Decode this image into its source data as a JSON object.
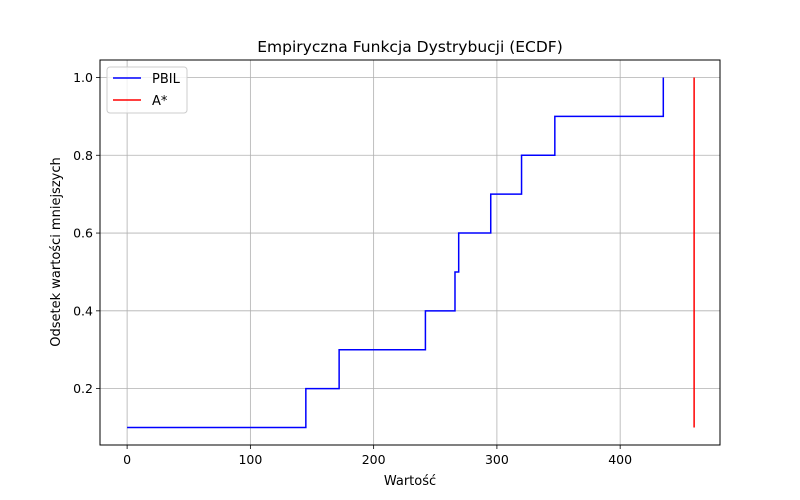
{
  "chart_data": {
    "type": "line",
    "title": "Empiryczna Funkcja Dystrybucji (ECDF)",
    "xlabel": "Wartość",
    "ylabel": "Odsetek wartości mniejszych",
    "xlim": [
      -22,
      481
    ],
    "ylim": [
      0.055,
      1.045
    ],
    "xticks": [
      0,
      100,
      200,
      300,
      400
    ],
    "yticks": [
      0.2,
      0.4,
      0.6,
      0.8,
      1.0
    ],
    "xtick_labels": [
      "0",
      "100",
      "200",
      "300",
      "400"
    ],
    "ytick_labels": [
      "0.2",
      "0.4",
      "0.6",
      "0.8",
      "1.0"
    ],
    "grid": true,
    "legend_position": "top-left",
    "series": [
      {
        "name": "PBIL",
        "color": "#0000ff",
        "step": "post",
        "x": [
          0,
          145,
          172,
          242,
          266,
          269,
          295,
          320,
          347,
          435,
          435
        ],
        "y": [
          0.1,
          0.2,
          0.3,
          0.4,
          0.5,
          0.6,
          0.7,
          0.8,
          0.9,
          0.9,
          1.0
        ]
      },
      {
        "name": "A*",
        "color": "#ff0000",
        "step": "none",
        "x": [
          460,
          460
        ],
        "y": [
          0.1,
          1.0
        ]
      }
    ]
  }
}
